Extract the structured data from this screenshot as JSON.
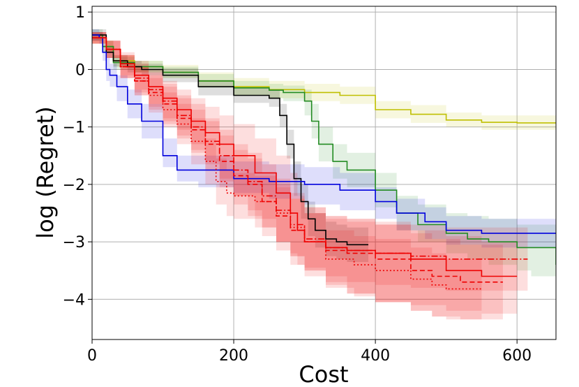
{
  "chart_data": {
    "type": "line",
    "title": "",
    "xlabel": "Cost",
    "ylabel": "log (Regret)",
    "xlim": [
      0,
      655
    ],
    "ylim": [
      -4.7,
      1.1
    ],
    "xticks": [
      0,
      200,
      400,
      600
    ],
    "xtick_labels": [
      "0",
      "200",
      "400",
      "600"
    ],
    "yticks": [
      1,
      0,
      -1,
      -2,
      -3,
      -4
    ],
    "ytick_labels": [
      "1",
      "0",
      "−1",
      "−2",
      "−3",
      "−4"
    ],
    "grid": true,
    "legend": "none",
    "series": [
      {
        "name": "yellow",
        "color": "#bfbf00",
        "dash": "solid",
        "x": [
          0,
          15,
          30,
          60,
          100,
          150,
          200,
          250,
          300,
          350,
          400,
          450,
          500,
          550,
          600,
          655
        ],
        "y": [
          0.55,
          0.4,
          0.15,
          0.05,
          -0.05,
          -0.2,
          -0.3,
          -0.35,
          -0.4,
          -0.45,
          -0.7,
          -0.78,
          -0.88,
          -0.92,
          -0.93,
          -0.93
        ],
        "lower": [
          0.45,
          0.3,
          0.05,
          -0.05,
          -0.15,
          -0.3,
          -0.45,
          -0.5,
          -0.55,
          -0.6,
          -0.85,
          -0.93,
          -1.0,
          -1.05,
          -1.05,
          -1.05
        ],
        "upper": [
          0.65,
          0.5,
          0.25,
          0.15,
          0.08,
          -0.05,
          -0.15,
          -0.2,
          -0.25,
          -0.3,
          -0.55,
          -0.62,
          -0.75,
          -0.8,
          -0.8,
          -0.8
        ]
      },
      {
        "name": "green",
        "color": "#228b22",
        "dash": "solid",
        "x": [
          0,
          15,
          30,
          60,
          100,
          150,
          200,
          250,
          270,
          300,
          310,
          320,
          340,
          360,
          400,
          430,
          460,
          500,
          530,
          560,
          600,
          620,
          655
        ],
        "y": [
          0.6,
          0.4,
          0.12,
          0.05,
          -0.05,
          -0.2,
          -0.32,
          -0.36,
          -0.4,
          -0.55,
          -0.9,
          -1.3,
          -1.6,
          -1.75,
          -2.1,
          -2.5,
          -2.7,
          -2.85,
          -2.95,
          -3.0,
          -3.1,
          -3.1,
          -3.4
        ],
        "lower": [
          0.5,
          0.3,
          0.0,
          -0.05,
          -0.15,
          -0.32,
          -0.45,
          -0.5,
          -0.55,
          -0.8,
          -1.2,
          -1.6,
          -1.9,
          -2.05,
          -2.4,
          -2.8,
          -3.0,
          -3.2,
          -3.3,
          -3.4,
          -3.5,
          -3.6,
          -4.05
        ],
        "upper": [
          0.7,
          0.5,
          0.22,
          0.15,
          0.05,
          -0.08,
          -0.2,
          -0.25,
          -0.28,
          -0.35,
          -0.6,
          -1.0,
          -1.3,
          -1.45,
          -1.8,
          -2.2,
          -2.35,
          -2.5,
          -2.55,
          -2.6,
          -2.7,
          -2.7,
          -2.9
        ]
      },
      {
        "name": "black",
        "color": "#000000",
        "dash": "solid",
        "x": [
          0,
          10,
          20,
          30,
          50,
          70,
          100,
          150,
          200,
          250,
          265,
          275,
          285,
          295,
          305,
          315,
          330,
          345,
          360,
          390
        ],
        "y": [
          0.6,
          0.6,
          0.3,
          0.15,
          0.05,
          0.0,
          -0.1,
          -0.3,
          -0.45,
          -0.5,
          -0.8,
          -1.3,
          -1.9,
          -2.3,
          -2.6,
          -2.8,
          -2.95,
          -3.0,
          -3.05,
          -3.05
        ],
        "lower": [
          0.5,
          0.5,
          0.2,
          0.05,
          -0.05,
          -0.1,
          -0.22,
          -0.45,
          -0.58,
          -0.65,
          -1.0,
          -1.55,
          -2.2,
          -2.6,
          -2.9,
          -3.1,
          -3.25,
          -3.3,
          -3.35,
          -3.35
        ],
        "upper": [
          0.7,
          0.7,
          0.4,
          0.25,
          0.15,
          0.1,
          0.02,
          -0.18,
          -0.32,
          -0.36,
          -0.6,
          -1.05,
          -1.6,
          -2.0,
          -2.3,
          -2.5,
          -2.65,
          -2.7,
          -2.75,
          -2.75
        ]
      },
      {
        "name": "blue",
        "color": "#0000dd",
        "dash": "solid",
        "x": [
          0,
          10,
          15,
          20,
          25,
          35,
          50,
          70,
          100,
          120,
          150,
          200,
          250,
          300,
          350,
          400,
          430,
          470,
          500,
          550,
          600,
          655
        ],
        "y": [
          0.6,
          0.55,
          0.3,
          0.0,
          -0.1,
          -0.3,
          -0.6,
          -0.9,
          -1.5,
          -1.75,
          -1.75,
          -1.9,
          -1.95,
          -2.0,
          -2.1,
          -2.3,
          -2.5,
          -2.65,
          -2.8,
          -2.85,
          -2.85,
          -2.85
        ],
        "lower": [
          0.5,
          0.45,
          0.15,
          -0.2,
          -0.3,
          -0.55,
          -0.85,
          -1.2,
          -1.7,
          -1.95,
          -2.05,
          -2.15,
          -2.25,
          -2.35,
          -2.45,
          -2.6,
          -2.8,
          -2.95,
          -3.05,
          -3.1,
          -3.1,
          -3.1
        ],
        "upper": [
          0.7,
          0.65,
          0.45,
          0.2,
          0.1,
          -0.1,
          -0.35,
          -0.6,
          -1.2,
          -1.5,
          -1.5,
          -1.6,
          -1.65,
          -1.7,
          -1.8,
          -2.05,
          -2.25,
          -2.4,
          -2.55,
          -2.6,
          -2.6,
          -2.6
        ]
      },
      {
        "name": "red-solid",
        "color": "#ee0000",
        "dash": "solid",
        "x": [
          0,
          20,
          40,
          60,
          80,
          100,
          120,
          140,
          160,
          180,
          200,
          230,
          260,
          280,
          290,
          300,
          330,
          360,
          400,
          450,
          500,
          550,
          600
        ],
        "y": [
          0.55,
          0.35,
          0.1,
          -0.1,
          -0.3,
          -0.5,
          -0.7,
          -0.9,
          -1.1,
          -1.3,
          -1.5,
          -1.8,
          -2.15,
          -2.5,
          -2.8,
          -3.0,
          -3.1,
          -3.15,
          -3.2,
          -3.3,
          -3.5,
          -3.6,
          -3.6
        ],
        "lower": [
          0.45,
          0.2,
          -0.1,
          -0.35,
          -0.6,
          -0.85,
          -1.05,
          -1.3,
          -1.6,
          -1.9,
          -2.2,
          -2.6,
          -3.0,
          -3.2,
          -3.4,
          -3.5,
          -3.7,
          -3.9,
          -4.05,
          -4.1,
          -4.2,
          -4.25,
          -4.25
        ],
        "upper": [
          0.65,
          0.5,
          0.3,
          0.15,
          0.0,
          -0.2,
          -0.35,
          -0.5,
          -0.65,
          -0.8,
          -0.95,
          -1.2,
          -1.5,
          -1.8,
          -2.2,
          -2.5,
          -2.6,
          -2.65,
          -2.7,
          -2.8,
          -2.9,
          -3.0,
          -3.0
        ]
      },
      {
        "name": "red-dashed",
        "color": "#ee0000",
        "dash": "7,4",
        "x": [
          0,
          20,
          40,
          60,
          80,
          100,
          120,
          140,
          160,
          180,
          200,
          220,
          240,
          260,
          280,
          300,
          330,
          360,
          400,
          450,
          480,
          520,
          580
        ],
        "y": [
          0.55,
          0.35,
          0.05,
          -0.2,
          -0.4,
          -0.6,
          -0.85,
          -1.05,
          -1.3,
          -1.6,
          -1.85,
          -2.0,
          -2.3,
          -2.55,
          -2.8,
          -3.0,
          -3.15,
          -3.2,
          -3.3,
          -3.5,
          -3.6,
          -3.7,
          -3.7
        ],
        "lower": [
          0.45,
          0.2,
          -0.15,
          -0.45,
          -0.7,
          -0.95,
          -1.2,
          -1.45,
          -1.75,
          -2.05,
          -2.35,
          -2.55,
          -2.9,
          -3.15,
          -3.4,
          -3.6,
          -3.75,
          -3.9,
          -4.05,
          -4.2,
          -4.3,
          -4.35,
          -4.35
        ],
        "upper": [
          0.65,
          0.5,
          0.25,
          0.05,
          -0.1,
          -0.3,
          -0.5,
          -0.7,
          -0.9,
          -1.15,
          -1.4,
          -1.55,
          -1.8,
          -2.0,
          -2.25,
          -2.4,
          -2.55,
          -2.6,
          -2.7,
          -2.85,
          -2.95,
          -3.05,
          -3.05
        ]
      },
      {
        "name": "red-dotted",
        "color": "#ee0000",
        "dash": "2,3",
        "x": [
          0,
          20,
          40,
          60,
          80,
          100,
          120,
          140,
          160,
          175,
          190,
          200,
          230,
          260,
          280,
          300,
          330,
          370,
          400,
          450,
          480,
          500,
          550
        ],
        "y": [
          0.55,
          0.35,
          0.05,
          -0.2,
          -0.45,
          -0.7,
          -0.95,
          -1.25,
          -1.6,
          -1.95,
          -2.15,
          -2.2,
          -2.3,
          -2.5,
          -2.75,
          -3.0,
          -3.3,
          -3.4,
          -3.5,
          -3.65,
          -3.75,
          -3.82,
          -3.82
        ],
        "lower": [
          0.45,
          0.2,
          -0.15,
          -0.45,
          -0.75,
          -1.0,
          -1.3,
          -1.65,
          -2.0,
          -2.35,
          -2.55,
          -2.6,
          -2.75,
          -3.0,
          -3.25,
          -3.5,
          -3.8,
          -3.95,
          -4.05,
          -4.2,
          -4.3,
          -4.35,
          -4.35
        ],
        "upper": [
          0.65,
          0.5,
          0.25,
          0.05,
          -0.15,
          -0.4,
          -0.6,
          -0.85,
          -1.2,
          -1.55,
          -1.75,
          -1.8,
          -1.85,
          -2.05,
          -2.25,
          -2.5,
          -2.8,
          -2.9,
          -2.95,
          -3.1,
          -3.2,
          -3.3,
          -3.3
        ]
      },
      {
        "name": "red-dashdot",
        "color": "#ee0000",
        "dash": "9,3,2,3",
        "x": [
          0,
          20,
          40,
          60,
          80,
          100,
          120,
          140,
          160,
          180,
          200,
          220,
          240,
          260,
          280,
          300,
          330,
          360,
          400,
          450,
          500,
          550,
          615
        ],
        "y": [
          0.55,
          0.35,
          0.05,
          -0.15,
          -0.35,
          -0.55,
          -0.8,
          -1.0,
          -1.25,
          -1.5,
          -1.75,
          -1.95,
          -2.2,
          -2.45,
          -2.7,
          -2.95,
          -3.1,
          -3.15,
          -3.2,
          -3.25,
          -3.3,
          -3.3,
          -3.3
        ],
        "lower": [
          0.45,
          0.2,
          -0.15,
          -0.4,
          -0.65,
          -0.9,
          -1.15,
          -1.4,
          -1.65,
          -1.95,
          -2.2,
          -2.45,
          -2.75,
          -3.0,
          -3.25,
          -3.45,
          -3.6,
          -3.7,
          -3.75,
          -3.8,
          -3.85,
          -3.85,
          -3.85
        ],
        "upper": [
          0.65,
          0.5,
          0.25,
          0.1,
          -0.05,
          -0.25,
          -0.45,
          -0.6,
          -0.85,
          -1.05,
          -1.3,
          -1.45,
          -1.65,
          -1.9,
          -2.15,
          -2.4,
          -2.55,
          -2.6,
          -2.65,
          -2.7,
          -2.75,
          -2.75,
          -2.75
        ]
      }
    ]
  }
}
